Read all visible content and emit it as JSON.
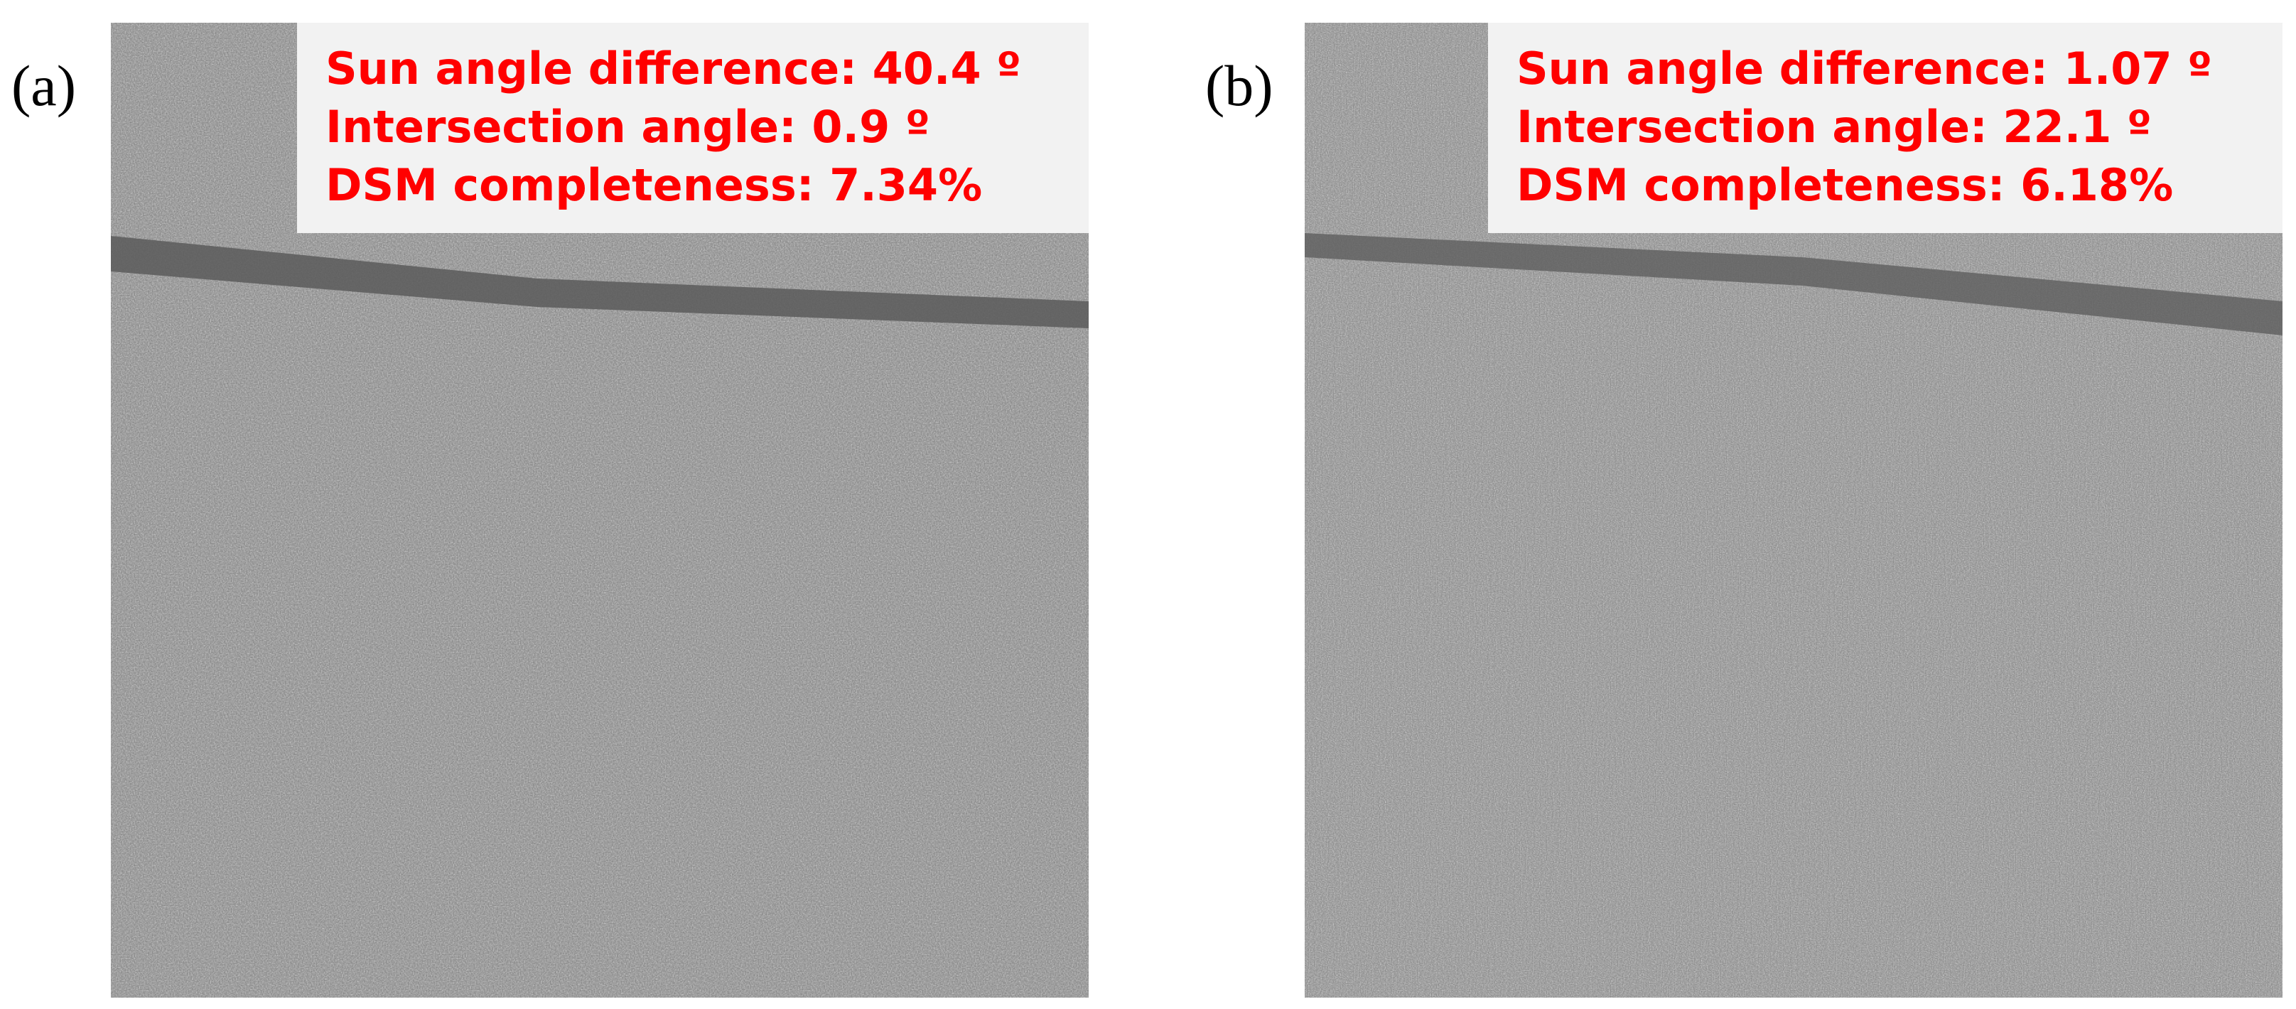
{
  "panels": [
    {
      "label": "(a)",
      "lines": [
        "Sun angle difference:  40.4 º",
        "Intersection angle:  0.9 º",
        "DSM completeness:  7.34%"
      ]
    },
    {
      "label": "(b)",
      "lines": [
        "Sun angle difference:  1.07 º",
        "Intersection angle:  22.1 º",
        "DSM completeness:  6.18%"
      ]
    }
  ],
  "colors": {
    "annotation_text": "#ff0000",
    "annotation_box": "#f2f2f2",
    "image_base": "#7a7a7a"
  }
}
